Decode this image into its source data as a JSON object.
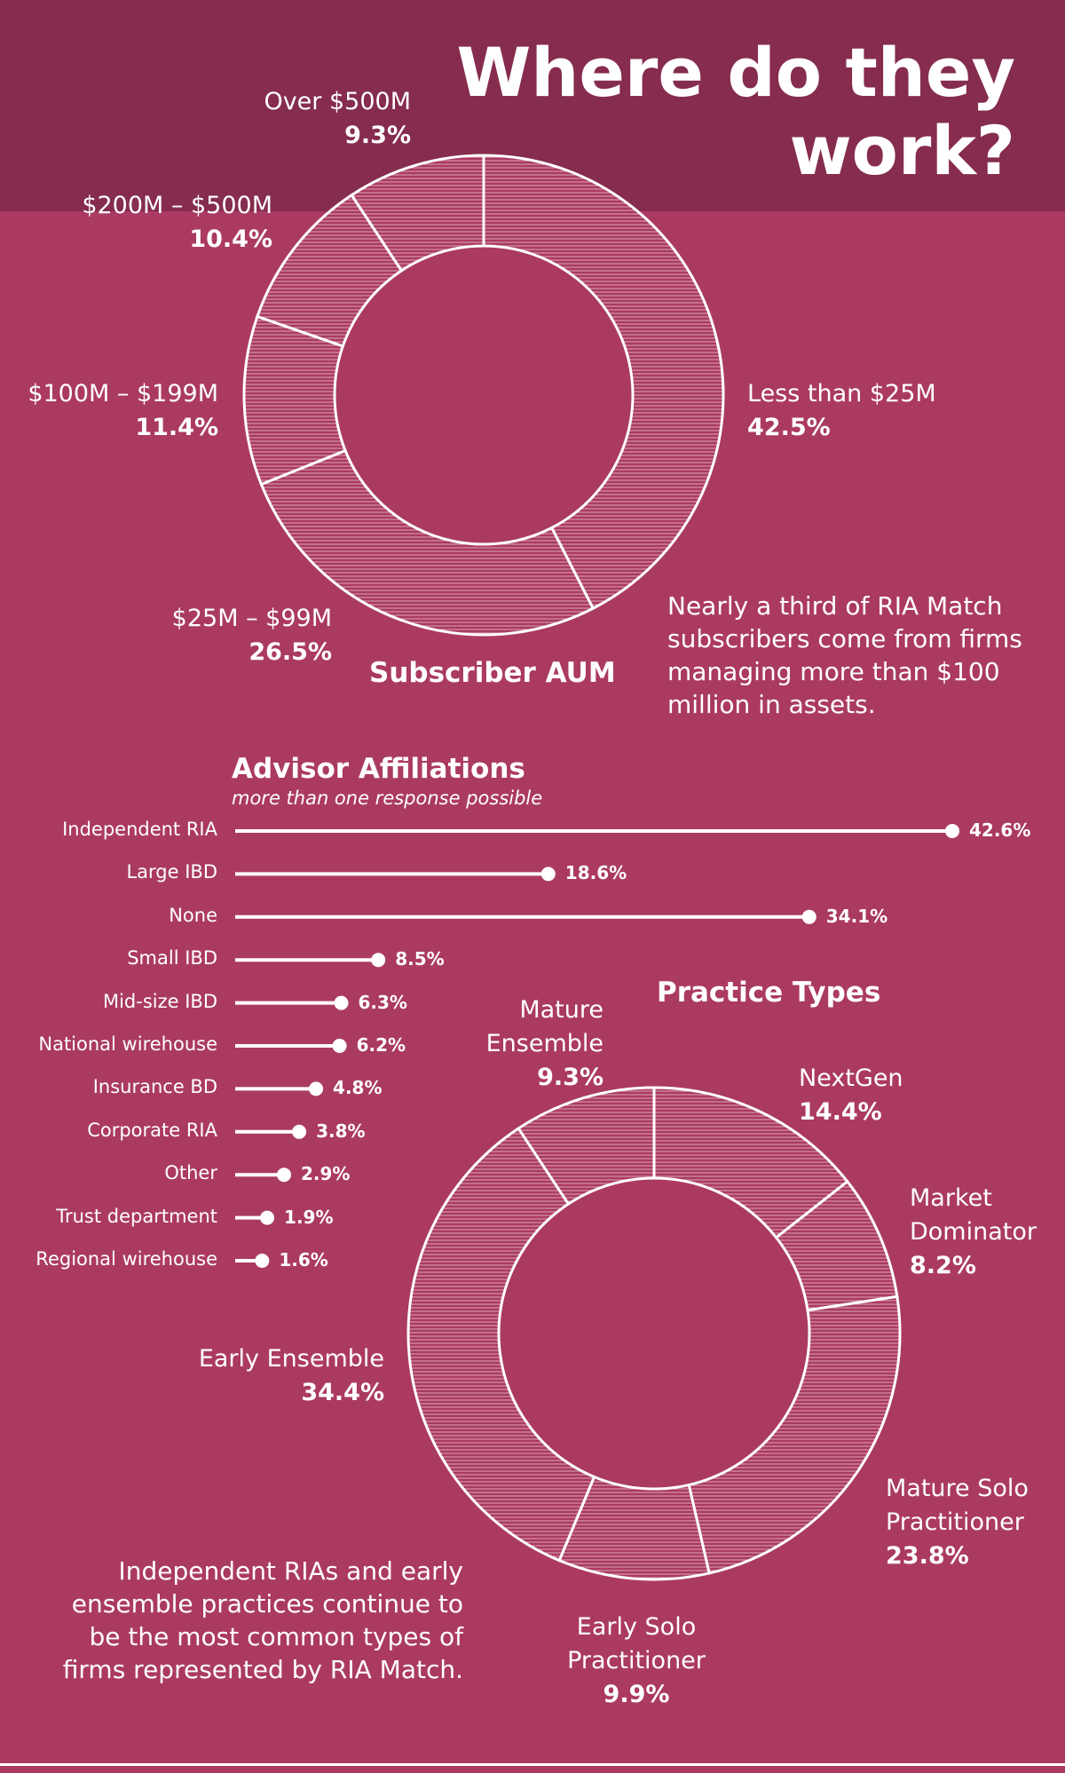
{
  "title": {
    "line1": "Where do they",
    "line2": "work?"
  },
  "colors": {
    "background": "#ab3a62",
    "header_band": "#852c4f",
    "ink": "#ffffff"
  },
  "chart_data": [
    {
      "type": "pie",
      "title": "Subscriber AUM",
      "labels": [
        "Less than $25M",
        "$25M – $99M",
        "$100M – $199M",
        "$200M – $500M",
        "Over $500M"
      ],
      "values": [
        42.5,
        26.5,
        11.4,
        10.4,
        9.3
      ],
      "value_labels": [
        "42.5%",
        "26.5%",
        "11.4%",
        "10.4%",
        "9.3%"
      ],
      "note": "Nearly a third of RIA Match subscribers come from firms managing more than $100 million in assets."
    },
    {
      "type": "bar",
      "title": "Advisor Affiliations",
      "subtitle": "more than one response possible",
      "categories": [
        "Independent RIA",
        "Large IBD",
        "None",
        "Small IBD",
        "Mid-size IBD",
        "National wirehouse",
        "Insurance BD",
        "Corporate RIA",
        "Other",
        "Trust department",
        "Regional wirehouse"
      ],
      "values": [
        42.6,
        18.6,
        34.1,
        8.5,
        6.3,
        6.2,
        4.8,
        3.8,
        2.9,
        1.9,
        1.6
      ],
      "value_labels": [
        "42.6%",
        "18.6%",
        "34.1%",
        "8.5%",
        "6.3%",
        "6.2%",
        "4.8%",
        "3.8%",
        "2.9%",
        "1.9%",
        "1.6%"
      ]
    },
    {
      "type": "pie",
      "title": "Practice Types",
      "labels": [
        "NextGen",
        "Market Dominator",
        "Mature Solo Practitioner",
        "Early Solo Practitioner",
        "Early Ensemble",
        "Mature Ensemble"
      ],
      "label_lines": [
        [
          "NextGen"
        ],
        [
          "Market",
          "Dominator"
        ],
        [
          "Mature Solo",
          "Practitioner"
        ],
        [
          "Early Solo",
          "Practitioner"
        ],
        [
          "Early Ensemble"
        ],
        [
          "Mature",
          "Ensemble"
        ]
      ],
      "values": [
        14.4,
        8.2,
        23.8,
        9.9,
        34.4,
        9.3
      ],
      "value_labels": [
        "14.4%",
        "8.2%",
        "23.8%",
        "9.9%",
        "34.4%",
        "9.3%"
      ],
      "note": "Independent RIAs and early ensemble practices continue to be the most common types of firms represented by RIA Match."
    }
  ]
}
